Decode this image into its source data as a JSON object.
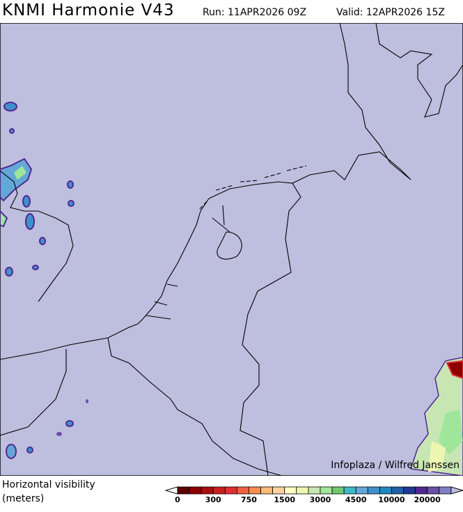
{
  "header": {
    "title": "KNMI Harmonie V43",
    "run": "Run: 11APR2026 09Z",
    "valid": "Valid: 12APR2026 15Z"
  },
  "map": {
    "background_color": "#bebedf",
    "credit": "Infoplaza / Wilfred Janssen"
  },
  "legend": {
    "variable": "Horizontal visibility",
    "units": "(meters)",
    "tick_labels": [
      "0",
      "300",
      "750",
      "1500",
      "3000",
      "4500",
      "10000",
      "20000"
    ],
    "colors": [
      "#5c0000",
      "#8c0000",
      "#a80f0f",
      "#c82020",
      "#e03030",
      "#f06040",
      "#fa8c50",
      "#fdbb78",
      "#fdd49e",
      "#ffffc0",
      "#eef7b0",
      "#c8e6b4",
      "#a0e69a",
      "#70c870",
      "#40b8c8",
      "#64a8d8",
      "#4090cc",
      "#2088c0",
      "#2060a8",
      "#203896",
      "#502890",
      "#6a50a8",
      "#8080c0"
    ],
    "low_end_color": "#ffffff",
    "high_end_color": "#bebedf"
  }
}
